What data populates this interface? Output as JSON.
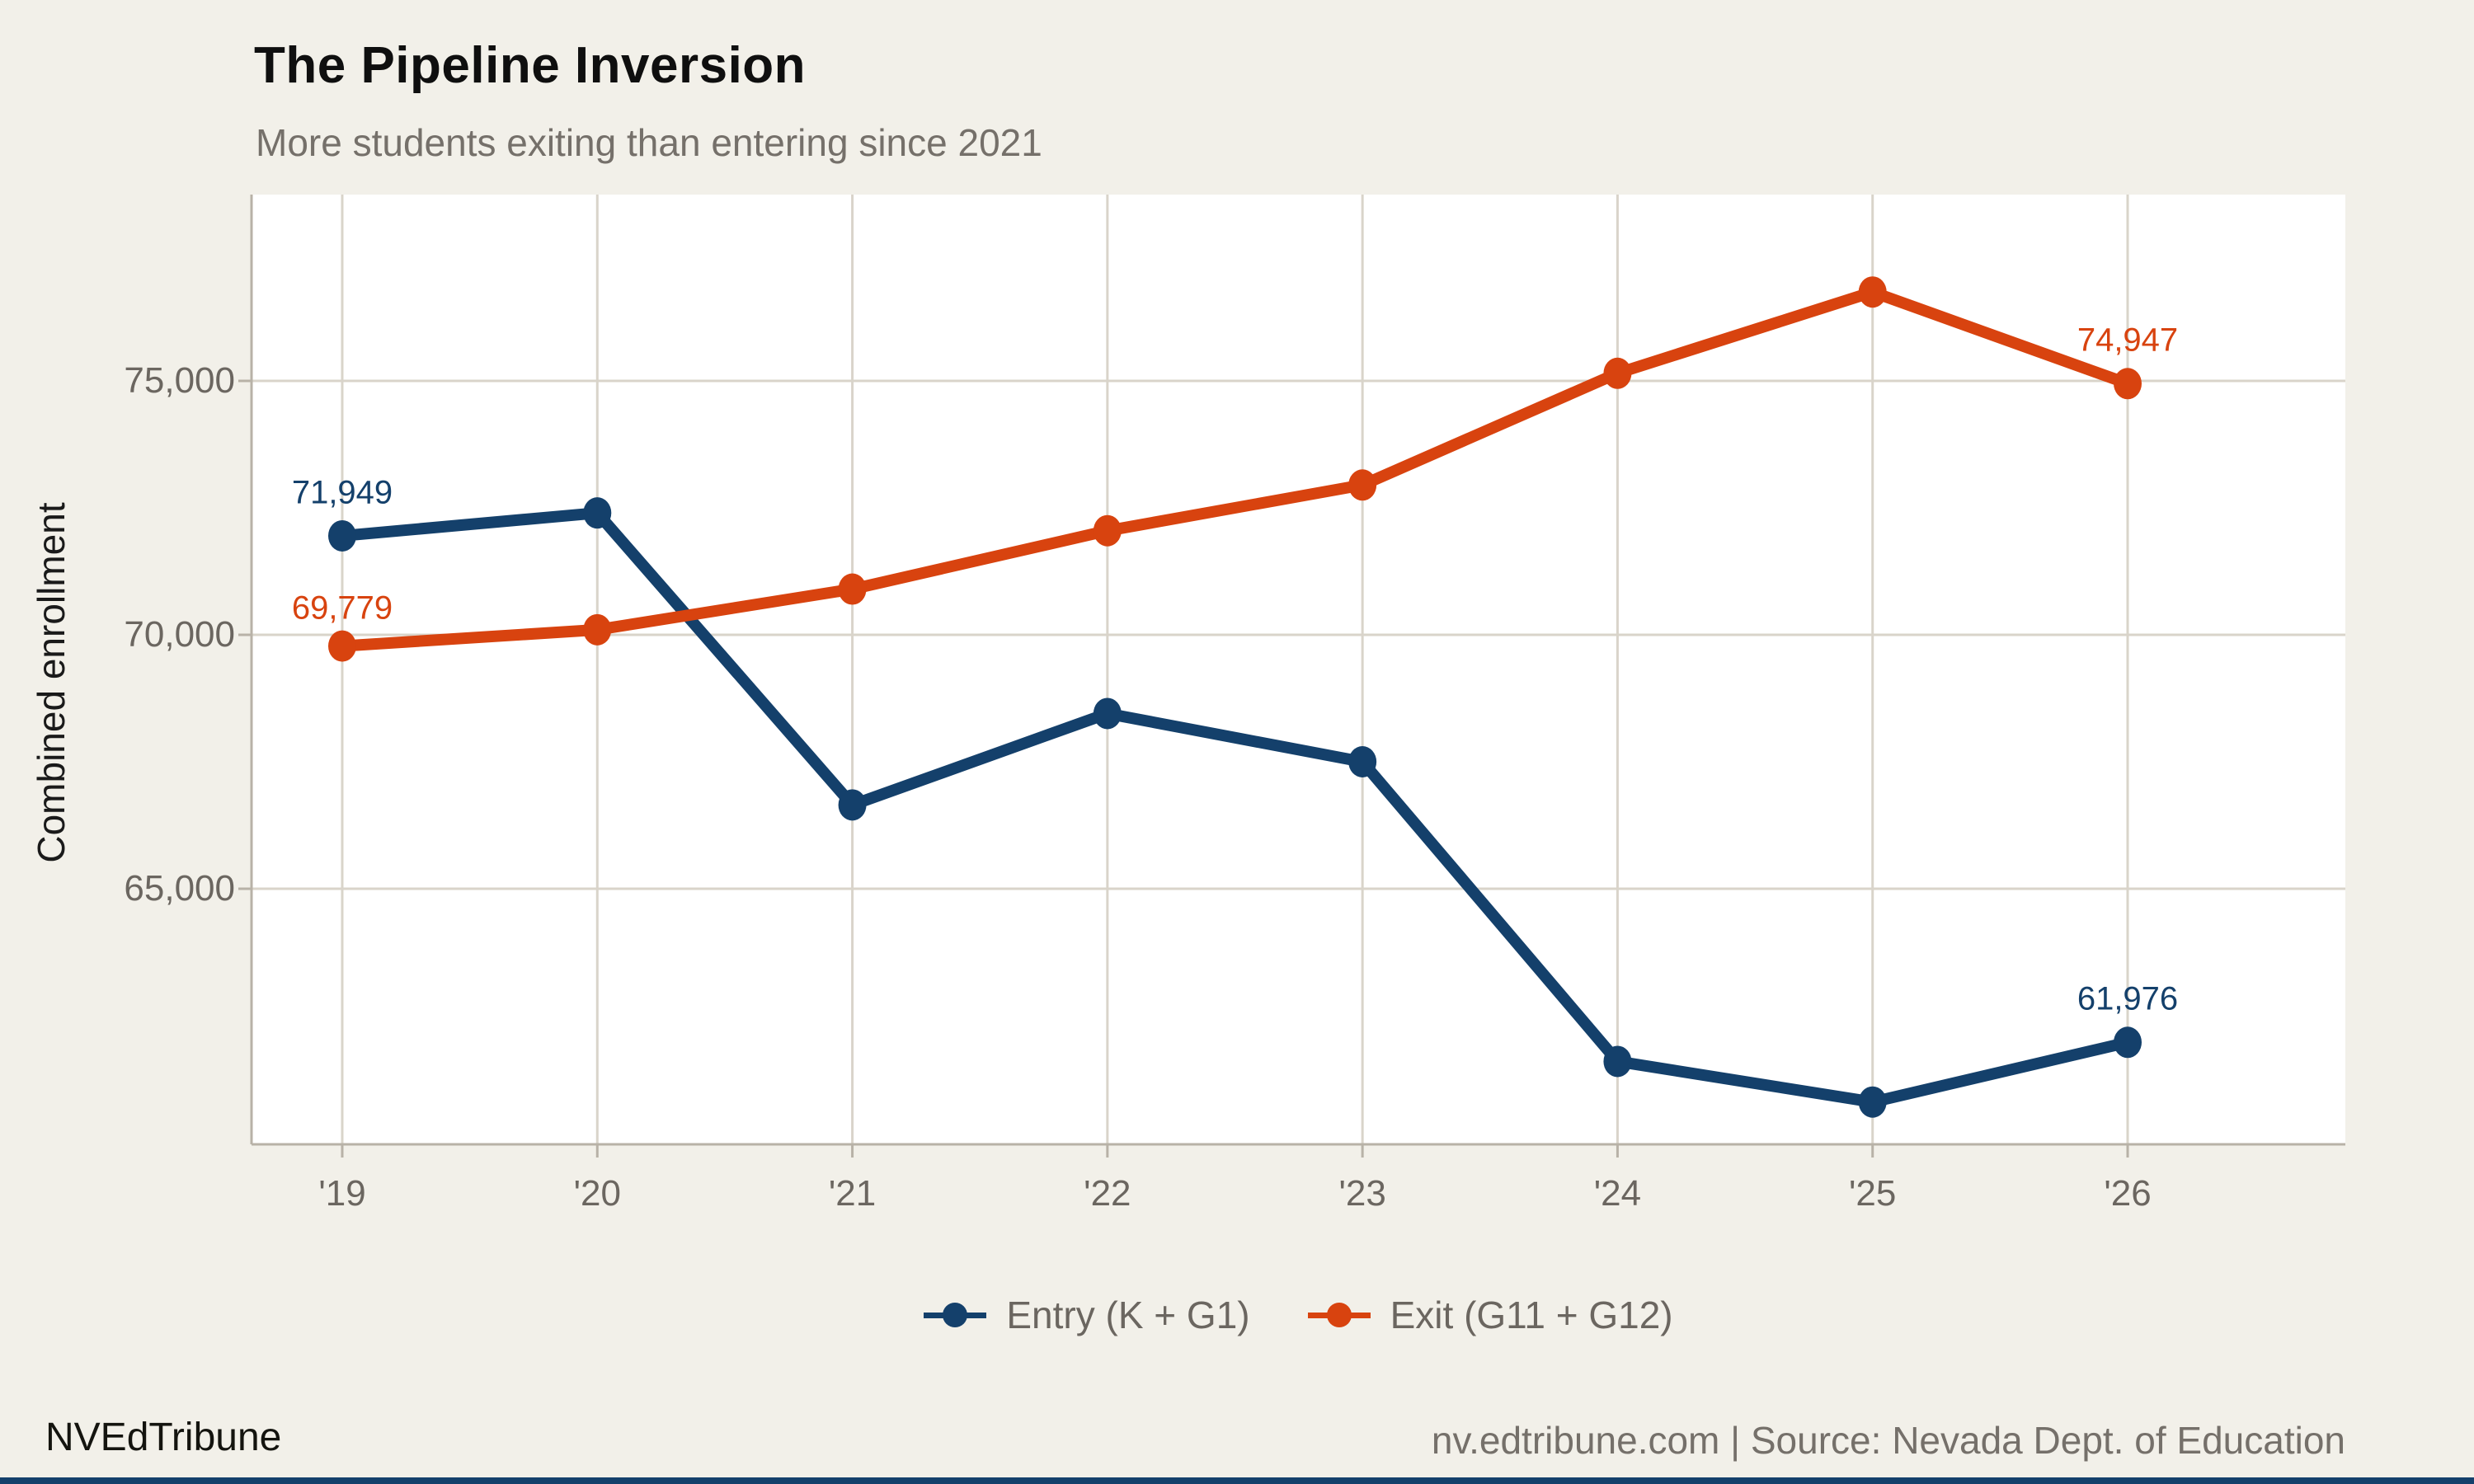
{
  "header": {
    "title": "The Pipeline Inversion",
    "subtitle": "More students exiting than entering since 2021"
  },
  "footer": {
    "brand": "NVEdTribune",
    "source": "nv.edtribune.com | Source: Nevada Dept. of Education"
  },
  "colors": {
    "page_bg": "#f2f0e9",
    "plot_bg": "#ffffff",
    "gridline": "#d9d4ca",
    "axis": "#b8b2a7",
    "entry_navy": "#14406b",
    "exit_orange": "#d8430f",
    "tick_text": "#6b6660",
    "subtitle_text": "#75706a"
  },
  "chart_data": {
    "type": "line",
    "title": "The Pipeline Inversion",
    "subtitle": "More students exiting than entering since 2021",
    "xlabel": "",
    "ylabel": "Combined enrollment",
    "x": [
      "'19",
      "'20",
      "'21",
      "'22",
      "'23",
      "'24",
      "'25",
      "'26"
    ],
    "series": [
      {
        "name": "Entry (K + G1)",
        "color": "#14406b",
        "values": [
          71949,
          72400,
          66650,
          68450,
          67500,
          61600,
          60800,
          61976
        ],
        "endpoint_labels": {
          "first": "71,949",
          "last": "61,976"
        }
      },
      {
        "name": "Exit (G11 + G12)",
        "color": "#d8430f",
        "values": [
          69779,
          70100,
          70900,
          72050,
          72950,
          75150,
          76750,
          74947
        ],
        "endpoint_labels": {
          "first": "69,779",
          "last": "74,947"
        }
      }
    ],
    "y_ticks": [
      {
        "value": 75000,
        "label": "75,000"
      },
      {
        "value": 70000,
        "label": "70,000"
      },
      {
        "value": 65000,
        "label": "65,000"
      }
    ],
    "ylim": [
      59950,
      78700
    ],
    "grid": true,
    "legend_position": "bottom"
  },
  "legend": {
    "items": [
      {
        "label": "Entry (K + G1)",
        "color": "#14406b"
      },
      {
        "label": "Exit (G11 + G12)",
        "color": "#d8430f"
      }
    ]
  }
}
